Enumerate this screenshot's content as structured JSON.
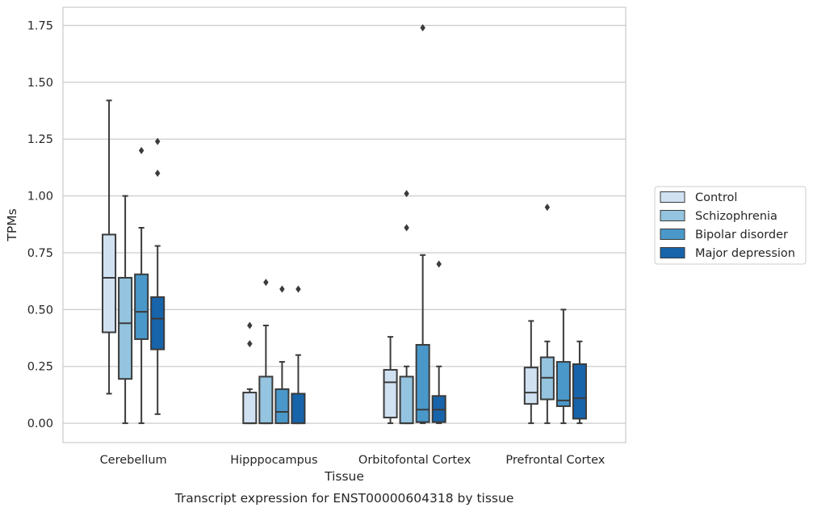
{
  "chart_data": {
    "type": "boxplot",
    "xlabel": "Tissue",
    "ylabel": "TPMs",
    "caption": "Transcript expression for ENST00000604318 by tissue",
    "ylim": [
      -0.085,
      1.83
    ],
    "yticks": [
      0.0,
      0.25,
      0.5,
      0.75,
      1.0,
      1.25,
      1.5,
      1.75
    ],
    "ytick_labels": [
      "0.00",
      "0.25",
      "0.50",
      "0.75",
      "1.00",
      "1.25",
      "1.50",
      "1.75"
    ],
    "grid": "horizontal",
    "legend_position": "right",
    "categories": [
      "Cerebellum",
      "Hipppocampus",
      "Orbitofontal Cortex",
      "Prefrontal Cortex"
    ],
    "series": [
      {
        "name": "Control",
        "color": "#d0e1f2",
        "boxes": [
          {
            "whislo": 0.13,
            "q1": 0.4,
            "med": 0.64,
            "q3": 0.83,
            "whishi": 1.42,
            "fliers": []
          },
          {
            "whislo": 0.0,
            "q1": 0.0,
            "med": 0.0,
            "q3": 0.135,
            "whishi": 0.15,
            "fliers": [
              0.35,
              0.43
            ]
          },
          {
            "whislo": 0.0,
            "q1": 0.025,
            "med": 0.18,
            "q3": 0.235,
            "whishi": 0.38,
            "fliers": []
          },
          {
            "whislo": 0.0,
            "q1": 0.085,
            "med": 0.135,
            "q3": 0.245,
            "whishi": 0.45,
            "fliers": []
          }
        ]
      },
      {
        "name": "Schizophrenia",
        "color": "#94c4df",
        "boxes": [
          {
            "whislo": 0.0,
            "q1": 0.195,
            "med": 0.44,
            "q3": 0.64,
            "whishi": 1.0,
            "fliers": []
          },
          {
            "whislo": 0.0,
            "q1": 0.0,
            "med": 0.0,
            "q3": 0.205,
            "whishi": 0.43,
            "fliers": [
              0.62
            ]
          },
          {
            "whislo": 0.0,
            "q1": 0.0,
            "med": 0.0,
            "q3": 0.205,
            "whishi": 0.25,
            "fliers": [
              0.86,
              1.01
            ]
          },
          {
            "whislo": 0.0,
            "q1": 0.105,
            "med": 0.2,
            "q3": 0.29,
            "whishi": 0.36,
            "fliers": [
              0.95
            ]
          }
        ]
      },
      {
        "name": "Bipolar disorder",
        "color": "#4a98c9",
        "boxes": [
          {
            "whislo": 0.0,
            "q1": 0.37,
            "med": 0.49,
            "q3": 0.655,
            "whishi": 0.86,
            "fliers": [
              1.2
            ]
          },
          {
            "whislo": 0.0,
            "q1": 0.0,
            "med": 0.05,
            "q3": 0.15,
            "whishi": 0.27,
            "fliers": [
              0.59
            ]
          },
          {
            "whislo": 0.0,
            "q1": 0.005,
            "med": 0.06,
            "q3": 0.345,
            "whishi": 0.74,
            "fliers": [
              1.74
            ]
          },
          {
            "whislo": 0.0,
            "q1": 0.075,
            "med": 0.1,
            "q3": 0.27,
            "whishi": 0.5,
            "fliers": []
          }
        ]
      },
      {
        "name": "Major depression",
        "color": "#1764ab",
        "boxes": [
          {
            "whislo": 0.04,
            "q1": 0.325,
            "med": 0.46,
            "q3": 0.555,
            "whishi": 0.78,
            "fliers": [
              1.1,
              1.24
            ]
          },
          {
            "whislo": 0.0,
            "q1": 0.0,
            "med": 0.0,
            "q3": 0.13,
            "whishi": 0.3,
            "fliers": [
              0.59
            ]
          },
          {
            "whislo": 0.0,
            "q1": 0.005,
            "med": 0.06,
            "q3": 0.12,
            "whishi": 0.25,
            "fliers": [
              0.7
            ]
          },
          {
            "whislo": 0.0,
            "q1": 0.02,
            "med": 0.11,
            "q3": 0.26,
            "whishi": 0.36,
            "fliers": []
          }
        ]
      }
    ]
  }
}
